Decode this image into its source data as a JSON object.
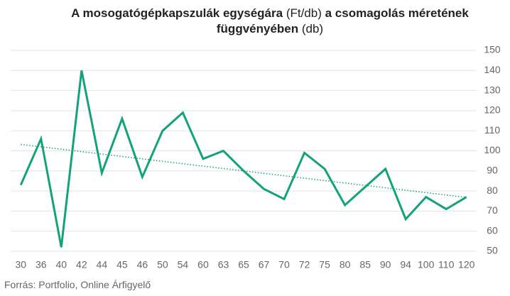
{
  "chart_data": {
    "type": "line",
    "title_lines": [
      [
        {
          "text": "A mosogatógépkapszulák egységára",
          "bold": true
        },
        {
          "text": " (Ft/db) ",
          "bold": false
        },
        {
          "text": "a csomagolás méretének",
          "bold": true
        }
      ],
      [
        {
          "text": "függvényében",
          "bold": true
        },
        {
          "text": " (db)",
          "bold": false
        }
      ]
    ],
    "source": "Forrás: Portfolio, Online Árfigyelő",
    "categories": [
      "30",
      "36",
      "40",
      "42",
      "44",
      "45",
      "46",
      "50",
      "54",
      "60",
      "63",
      "65",
      "67",
      "70",
      "72",
      "75",
      "80",
      "85",
      "90",
      "94",
      "100",
      "110",
      "120"
    ],
    "values": [
      83,
      106,
      52,
      140,
      89,
      116,
      87,
      110,
      119,
      96,
      100,
      90,
      81,
      76,
      99,
      91,
      73,
      82,
      91,
      66,
      77,
      71,
      77
    ],
    "color": "#13a37a",
    "trendline": [
      103.2,
      76.8
    ],
    "ylim": [
      50,
      150
    ],
    "yticks": [
      50,
      60,
      70,
      80,
      90,
      100,
      110,
      120,
      130,
      140,
      150
    ],
    "grid": true,
    "y_axis_side": "right"
  }
}
